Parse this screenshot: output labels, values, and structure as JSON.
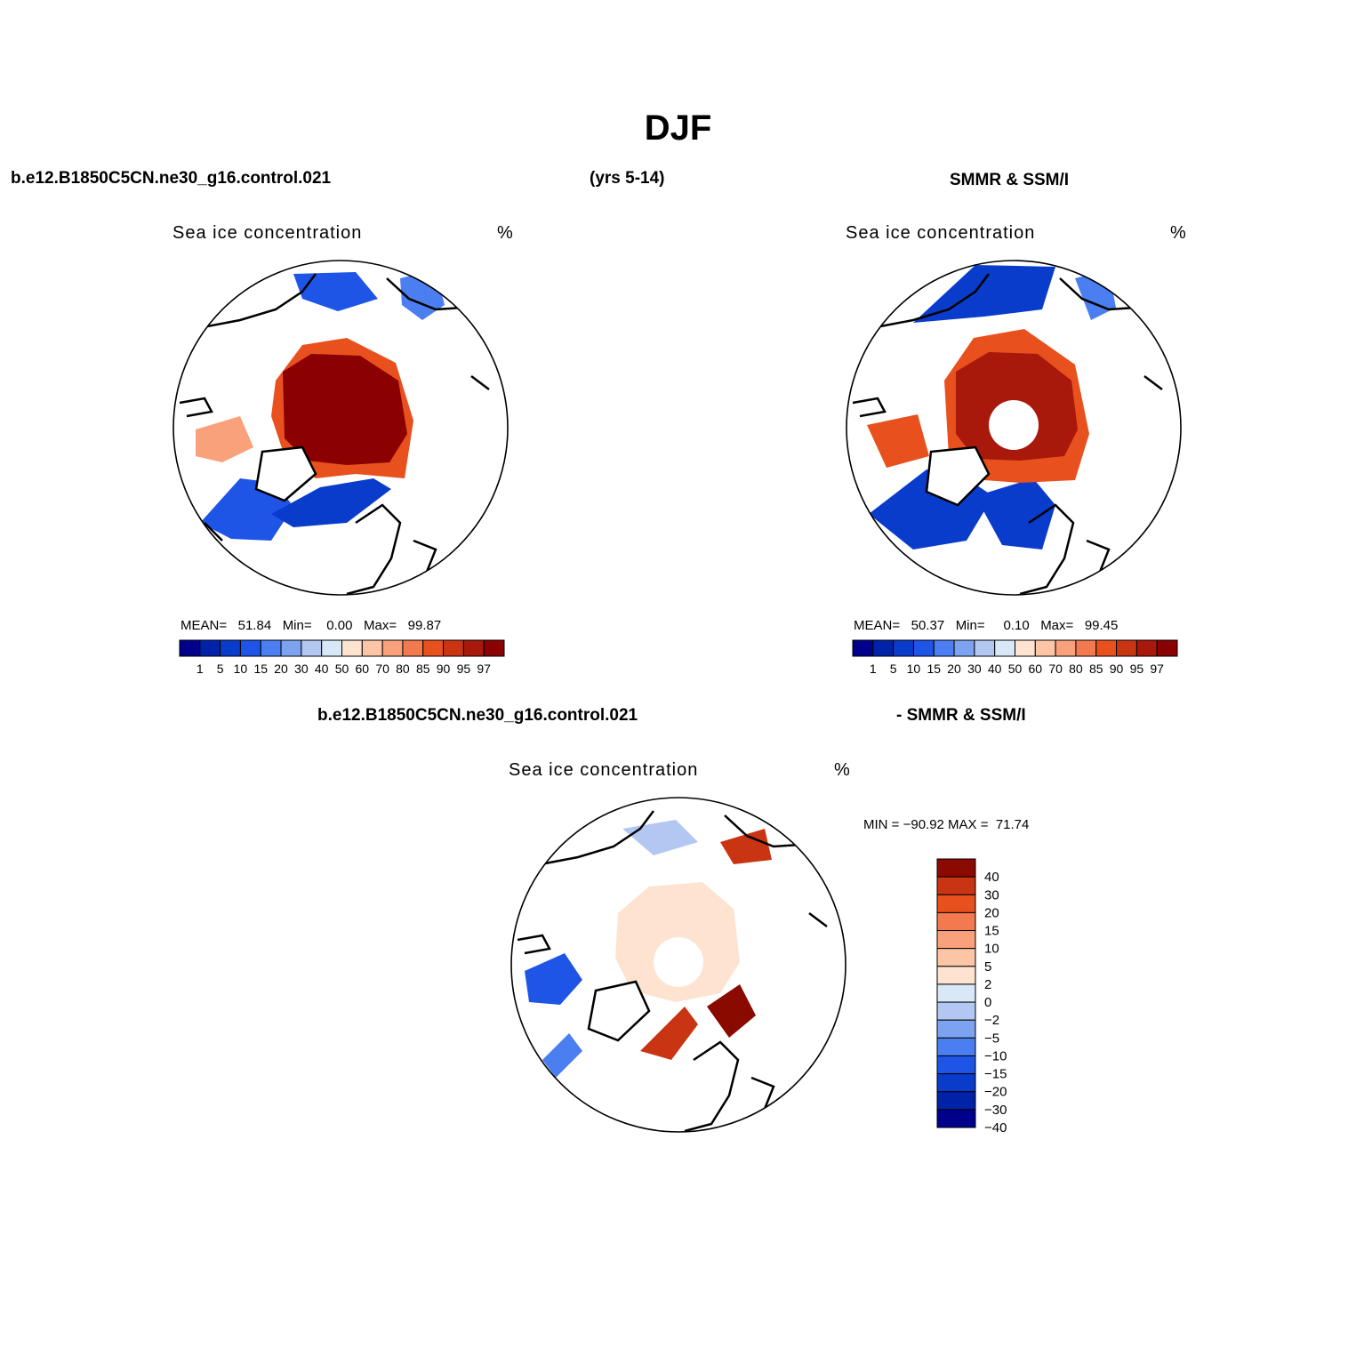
{
  "figure": {
    "title": "DJF",
    "top_left_label": "b.e12.B1850C5CN.ne30_g16.control.021",
    "top_mid_label": "(yrs 5-14)",
    "top_right_label": "SMMR & SSM/I",
    "bottom_left_label": "b.e12.B1850C5CN.ne30_g16.control.021",
    "bottom_right_label": "- SMMR & SSM/I"
  },
  "colors": {
    "levels_15": [
      "#00008b",
      "#0022a8",
      "#0a3ccc",
      "#1f55e6",
      "#4b7ef0",
      "#7da3f0",
      "#b2c8f2",
      "#d8e8f7",
      "#fde3d0",
      "#fcc5a6",
      "#f9a17a",
      "#f27a4e",
      "#e8511e",
      "#c93512",
      "#a8180b",
      "#8b0000"
    ],
    "levels_diff": [
      "#00008b",
      "#0022a8",
      "#0a3ccc",
      "#1f55e6",
      "#4b7ef0",
      "#7da3f0",
      "#b2c8f2",
      "#d8e8f7",
      "#fde3d0",
      "#fcc5a6",
      "#f9a17a",
      "#f27a4e",
      "#e8511e",
      "#c93512",
      "#8b0a00"
    ]
  },
  "panels": [
    {
      "id": "model",
      "variable": "Sea ice concentration",
      "units": "%",
      "stats": {
        "mean_label": "MEAN=",
        "mean": "51.84",
        "min_label": "Min=",
        "min": "0.00",
        "max_label": "Max=",
        "max": "99.87"
      },
      "pole_hole": false
    },
    {
      "id": "obs",
      "variable": "Sea ice concentration",
      "units": "%",
      "stats": {
        "mean_label": "MEAN=",
        "mean": "50.37",
        "min_label": "Min=",
        "min": "0.10",
        "max_label": "Max=",
        "max": "99.45"
      },
      "pole_hole": true
    },
    {
      "id": "diff",
      "variable": "Sea ice concentration",
      "units": "%",
      "minmax_text": "MIN = −90.92 MAX =  71.74",
      "pole_hole": true
    }
  ],
  "chart_data": [
    {
      "type": "heatmap",
      "title": "Sea ice concentration",
      "units": "%",
      "projection": "north polar stereographic",
      "contour_levels": [
        1,
        5,
        10,
        15,
        20,
        30,
        40,
        50,
        60,
        70,
        80,
        85,
        90,
        95,
        97
      ],
      "colorbar_orientation": "horizontal",
      "stats": {
        "mean": 51.84,
        "min": 0.0,
        "max": 99.87
      }
    },
    {
      "type": "heatmap",
      "title": "Sea ice concentration",
      "units": "%",
      "projection": "north polar stereographic",
      "contour_levels": [
        1,
        5,
        10,
        15,
        20,
        30,
        40,
        50,
        60,
        70,
        80,
        85,
        90,
        95,
        97
      ],
      "colorbar_orientation": "horizontal",
      "stats": {
        "mean": 50.37,
        "min": 0.1,
        "max": 99.45
      }
    },
    {
      "type": "heatmap",
      "title": "Sea ice concentration",
      "units": "%",
      "projection": "north polar stereographic",
      "contour_levels": [
        -40,
        -30,
        -20,
        -15,
        -10,
        -5,
        -2,
        0,
        2,
        5,
        10,
        15,
        20,
        30,
        40
      ],
      "colorbar_orientation": "vertical",
      "stats": {
        "min": -90.92,
        "max": 71.74
      }
    }
  ],
  "colorbars": {
    "horizontal_labels": [
      "1",
      "5",
      "10",
      "15",
      "20",
      "30",
      "40",
      "50",
      "60",
      "70",
      "80",
      "85",
      "90",
      "95",
      "97"
    ],
    "vertical_labels": [
      "40",
      "30",
      "20",
      "15",
      "10",
      "5",
      "2",
      "0",
      "−2",
      "−5",
      "−10",
      "−15",
      "−20",
      "−30",
      "−40"
    ]
  }
}
